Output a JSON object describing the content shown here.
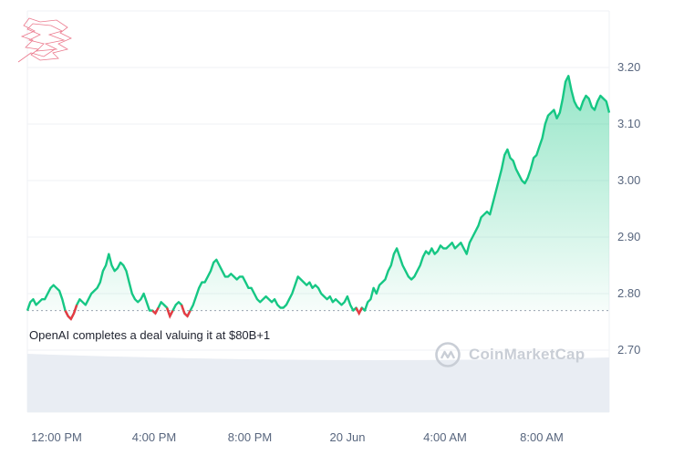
{
  "annotation": "OpenAI completes a deal valuing it at $80B+1",
  "watermark": {
    "text": "CoinMarketCap",
    "icon": "coinmarketcap-logo-icon"
  },
  "colors": {
    "line": "#16c784",
    "below_baseline": "#ea3943",
    "grid": "#eff2f5",
    "volume": "#e9edf3"
  },
  "chart_data": {
    "type": "area",
    "title": "",
    "xlabel": "",
    "ylabel": "",
    "x_ticks": [
      "12:00 PM",
      "4:00 PM",
      "8:00 PM",
      "20 Jun",
      "4:00 AM",
      "8:00 AM"
    ],
    "y_ticks": [
      "2.70",
      "2.80",
      "2.90",
      "3.00",
      "3.10",
      "3.20"
    ],
    "ylim": [
      2.6,
      3.25
    ],
    "baseline": 2.77,
    "grid": true,
    "legend": "none",
    "series": [
      {
        "values": [
          2.77,
          2.785,
          2.79,
          2.78,
          2.785,
          2.79,
          2.79,
          2.8,
          2.81,
          2.815,
          2.81,
          2.805,
          2.79,
          2.77,
          2.76,
          2.755,
          2.765,
          2.78,
          2.79,
          2.785,
          2.78,
          2.79,
          2.8,
          2.805,
          2.81,
          2.82,
          2.84,
          2.85,
          2.87,
          2.85,
          2.84,
          2.845,
          2.855,
          2.85,
          2.84,
          2.82,
          2.8,
          2.79,
          2.785,
          2.79,
          2.8,
          2.785,
          2.77,
          2.77,
          2.765,
          2.775,
          2.785,
          2.78,
          2.775,
          2.76,
          2.77,
          2.78,
          2.785,
          2.78,
          2.765,
          2.76,
          2.77,
          2.78,
          2.795,
          2.81,
          2.82,
          2.82,
          2.83,
          2.84,
          2.855,
          2.86,
          2.85,
          2.84,
          2.83,
          2.83,
          2.835,
          2.83,
          2.825,
          2.83,
          2.83,
          2.82,
          2.81,
          2.81,
          2.8,
          2.79,
          2.785,
          2.79,
          2.795,
          2.79,
          2.785,
          2.79,
          2.78,
          2.775,
          2.775,
          2.78,
          2.79,
          2.8,
          2.815,
          2.83,
          2.825,
          2.82,
          2.815,
          2.82,
          2.81,
          2.815,
          2.81,
          2.8,
          2.795,
          2.79,
          2.795,
          2.785,
          2.79,
          2.785,
          2.78,
          2.785,
          2.795,
          2.78,
          2.77,
          2.775,
          2.765,
          2.775,
          2.77,
          2.785,
          2.79,
          2.81,
          2.8,
          2.815,
          2.82,
          2.825,
          2.84,
          2.85,
          2.87,
          2.88,
          2.865,
          2.85,
          2.84,
          2.83,
          2.825,
          2.83,
          2.84,
          2.85,
          2.865,
          2.875,
          2.87,
          2.88,
          2.87,
          2.875,
          2.885,
          2.88,
          2.88,
          2.885,
          2.89,
          2.88,
          2.885,
          2.89,
          2.88,
          2.87,
          2.89,
          2.9,
          2.91,
          2.92,
          2.935,
          2.94,
          2.945,
          2.94,
          2.96,
          2.98,
          3.0,
          3.02,
          3.045,
          3.055,
          3.04,
          3.035,
          3.02,
          3.01,
          3.0,
          2.995,
          3.005,
          3.02,
          3.04,
          3.045,
          3.06,
          3.075,
          3.1,
          3.115,
          3.12,
          3.125,
          3.11,
          3.12,
          3.145,
          3.175,
          3.185,
          3.16,
          3.14,
          3.13,
          3.125,
          3.14,
          3.15,
          3.145,
          3.13,
          3.125,
          3.14,
          3.15,
          3.145,
          3.14,
          3.12
        ]
      }
    ]
  }
}
